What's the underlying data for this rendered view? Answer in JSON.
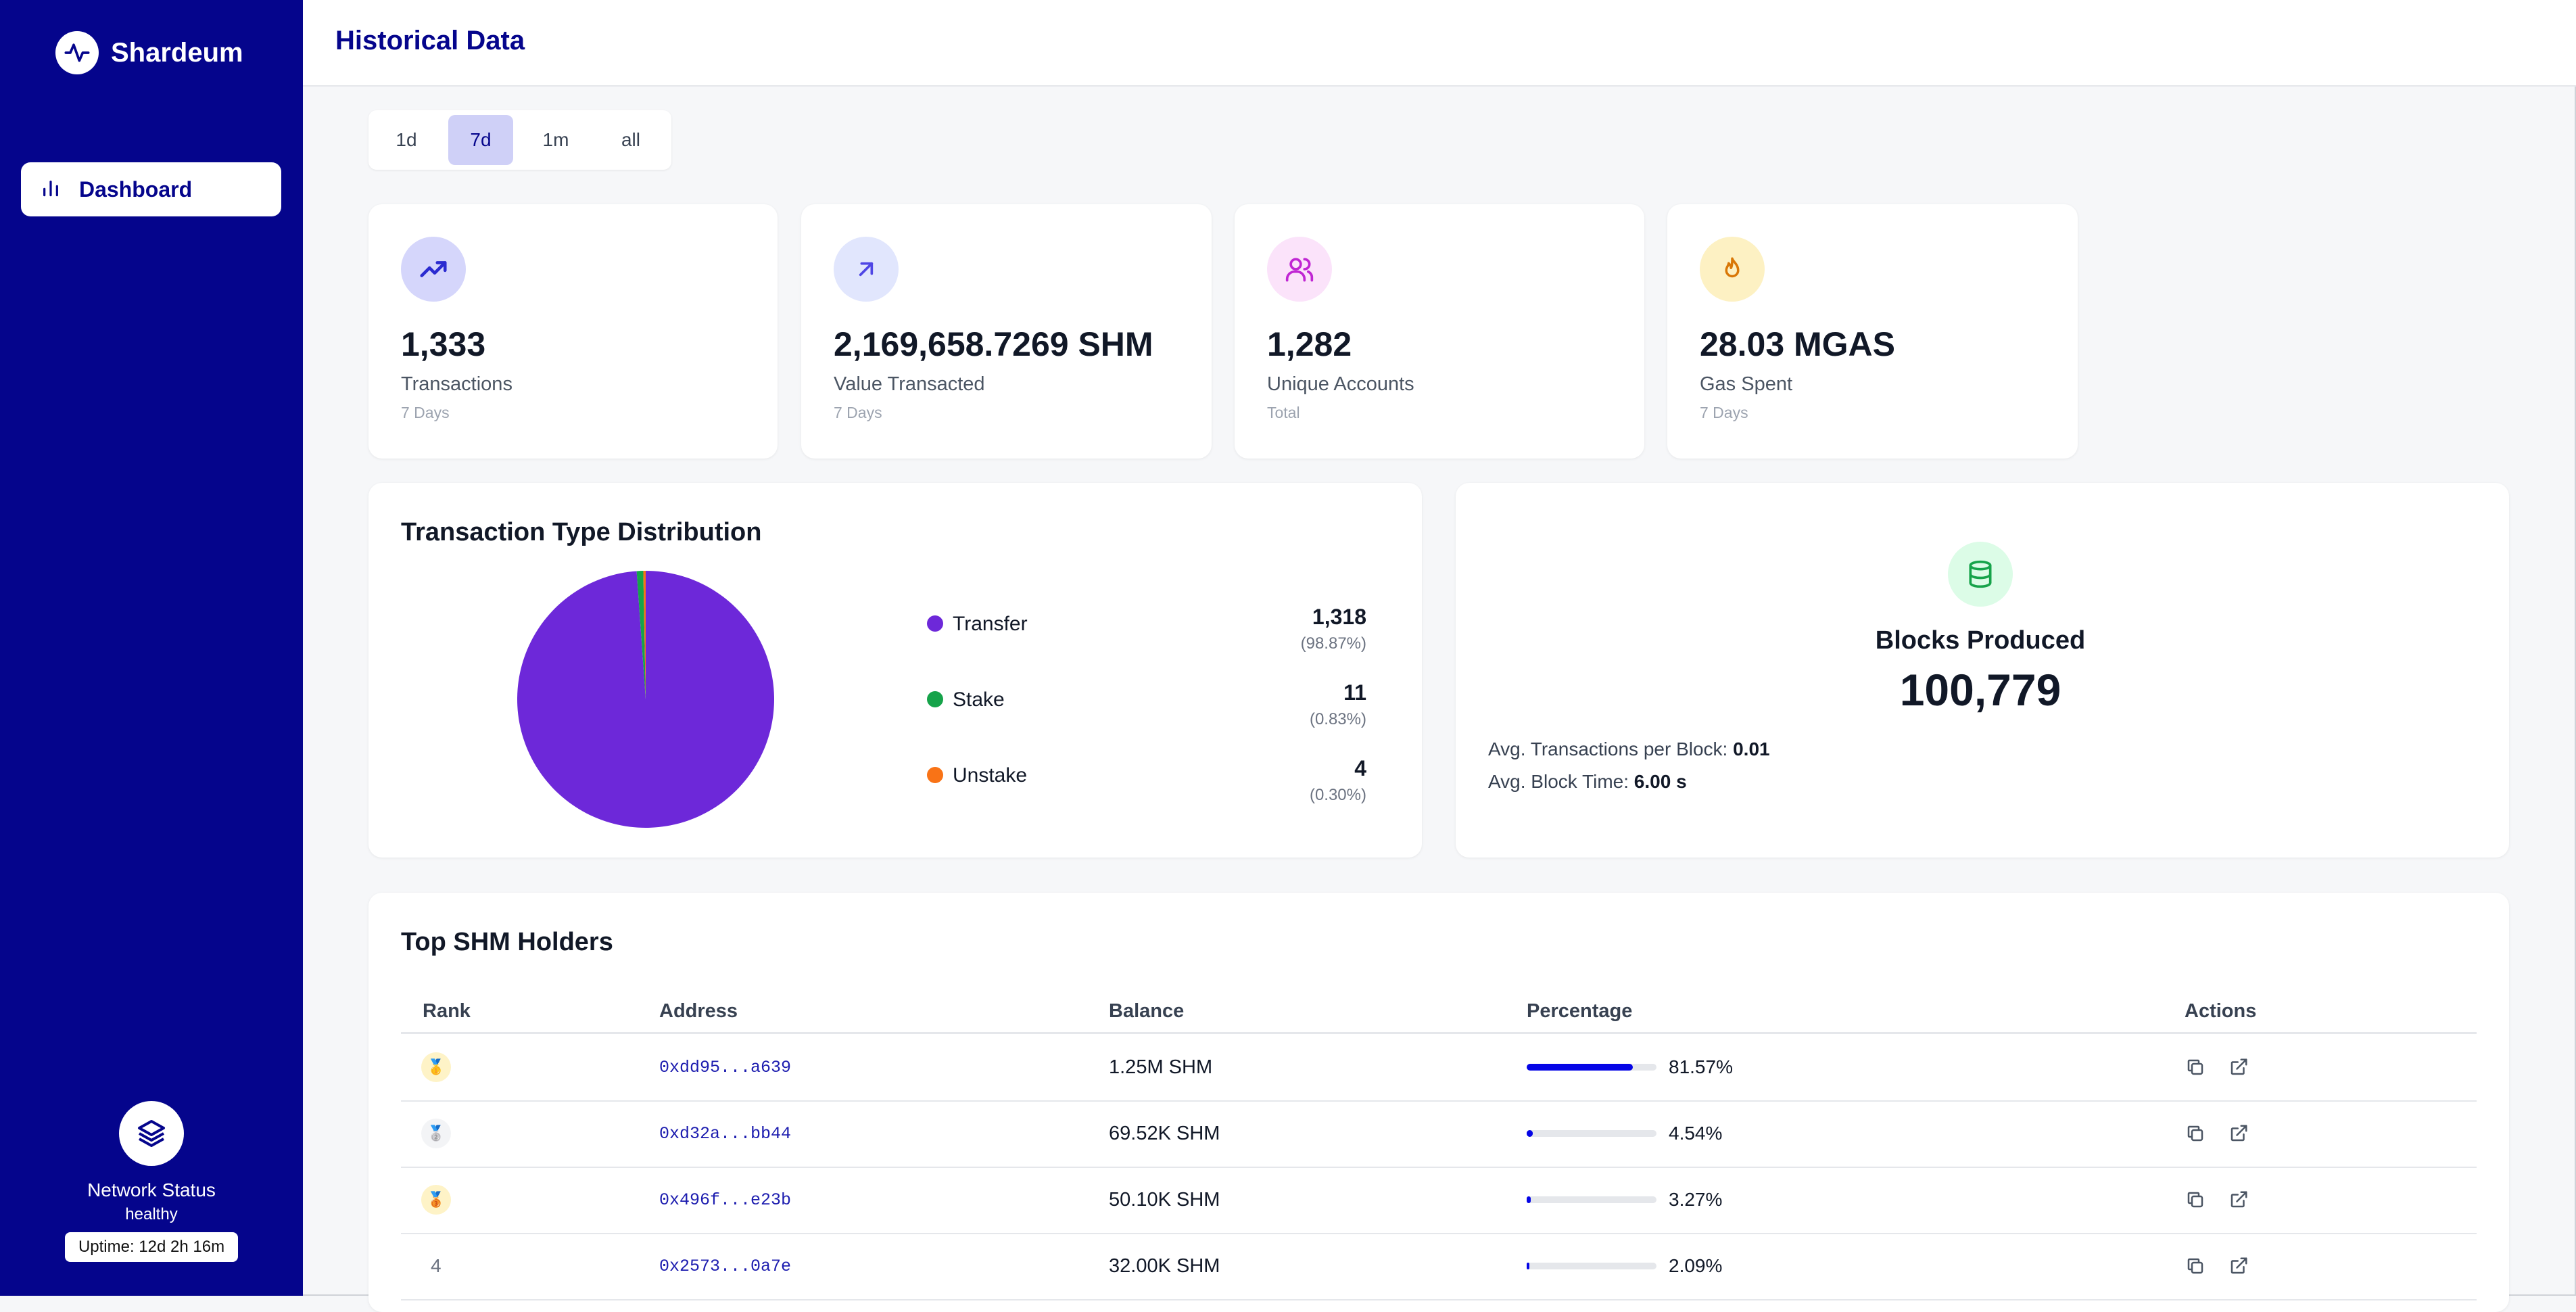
{
  "app": {
    "name": "Shardeum"
  },
  "sidebar": {
    "nav": [
      {
        "label": "Dashboard",
        "icon": "bar-chart-icon",
        "active": true
      }
    ],
    "network": {
      "title": "Network Status",
      "status": "healthy",
      "uptime": "Uptime: 12d 2h 16m"
    }
  },
  "header": {
    "title": "Historical Data"
  },
  "periods": {
    "options": [
      {
        "label": "1d"
      },
      {
        "label": "7d"
      },
      {
        "label": "1m"
      },
      {
        "label": "all"
      }
    ],
    "selected": "7d"
  },
  "stats": [
    {
      "value": "1,333",
      "label": "Transactions",
      "period": "7 Days",
      "icon": "trending-up-icon",
      "icon_bg": "#d5d6fb",
      "icon_color": "#2b2bd0"
    },
    {
      "value": "2,169,658.7269 SHM",
      "label": "Value Transacted",
      "period": "7 Days",
      "icon": "arrow-up-right-icon",
      "icon_bg": "#e1e6fd",
      "icon_color": "#4f46e5"
    },
    {
      "value": "1,282",
      "label": "Unique Accounts",
      "period": "Total",
      "icon": "users-icon",
      "icon_bg": "#fbe3fa",
      "icon_color": "#c026d3"
    },
    {
      "value": "28.03 MGAS",
      "label": "Gas Spent",
      "period": "7 Days",
      "icon": "flame-icon",
      "icon_bg": "#fdf1c3",
      "icon_color": "#d97706"
    }
  ],
  "distribution": {
    "title": "Transaction Type Distribution",
    "items": [
      {
        "name": "Transfer",
        "count": "1,318",
        "percent": "(98.87%)",
        "color": "#6d28d9"
      },
      {
        "name": "Stake",
        "count": "11",
        "percent": "(0.83%)",
        "color": "#16a34a"
      },
      {
        "name": "Unstake",
        "count": "4",
        "percent": "(0.30%)",
        "color": "#f97316"
      }
    ]
  },
  "chart_data": {
    "type": "pie",
    "title": "",
    "categories": [
      "Transfer",
      "Stake",
      "Unstake"
    ],
    "values": [
      1318,
      11,
      4
    ],
    "colors": [
      "#6d28d9",
      "#16a34a",
      "#f97316"
    ]
  },
  "blocks": {
    "title": "Blocks Produced",
    "value": "100,779",
    "avg_tx_label": "Avg. Transactions per Block: ",
    "avg_tx_value": "0.01",
    "avg_time_label": "Avg. Block Time: ",
    "avg_time_value": "6.00 s",
    "icon": "database-icon"
  },
  "holders": {
    "title": "Top SHM Holders",
    "columns": {
      "rank": "Rank",
      "address": "Address",
      "balance": "Balance",
      "percentage": "Percentage",
      "actions": "Actions"
    },
    "rows": [
      {
        "rank": "1",
        "medal": "gold",
        "address": "0xdd95...a639",
        "balance": "1.25M SHM",
        "percentage": "81.57%",
        "pct_value": 81.57
      },
      {
        "rank": "2",
        "medal": "silver",
        "address": "0xd32a...bb44",
        "balance": "69.52K SHM",
        "percentage": "4.54%",
        "pct_value": 4.54
      },
      {
        "rank": "3",
        "medal": "bronze",
        "address": "0x496f...e23b",
        "balance": "50.10K SHM",
        "percentage": "3.27%",
        "pct_value": 3.27
      },
      {
        "rank": "4",
        "medal": "",
        "address": "0x2573...0a7e",
        "balance": "32.00K SHM",
        "percentage": "2.09%",
        "pct_value": 2.09
      }
    ]
  }
}
